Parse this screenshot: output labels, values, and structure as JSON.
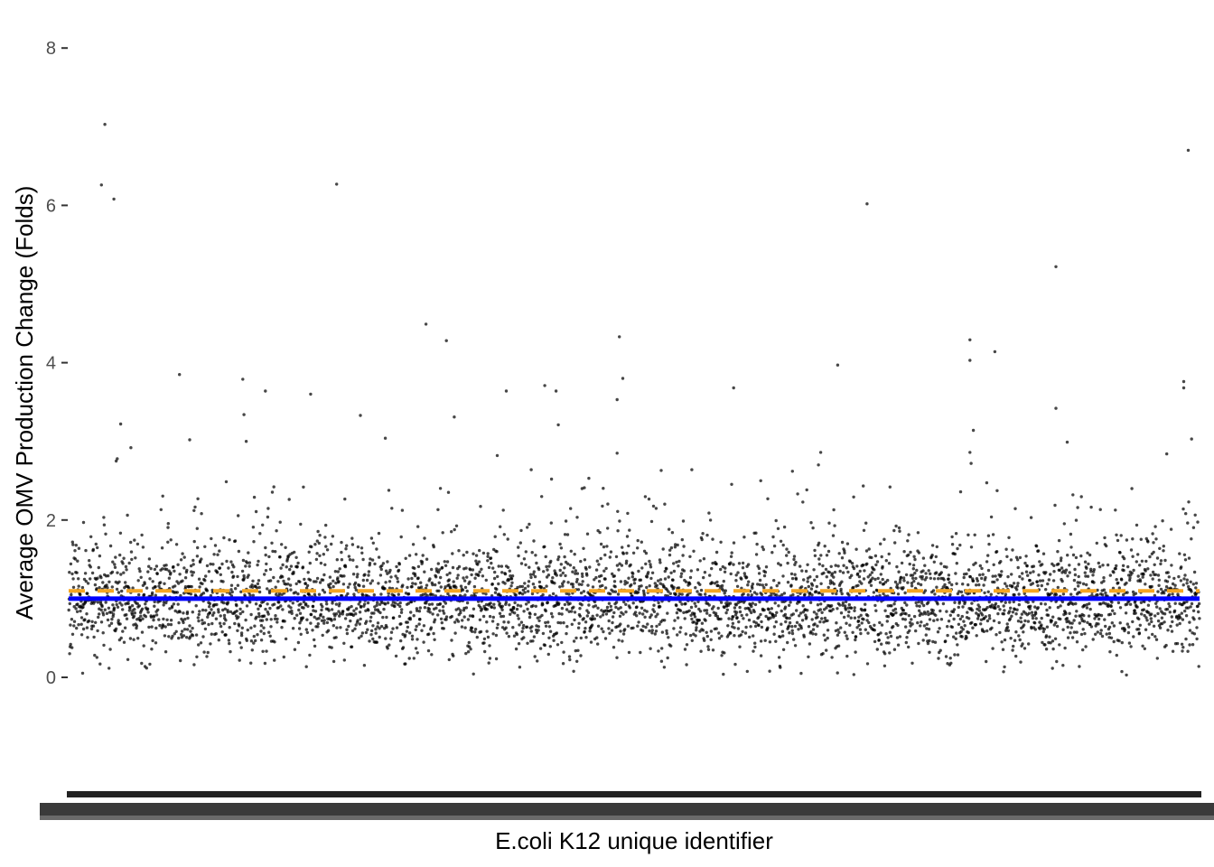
{
  "chart_data": {
    "type": "scatter",
    "title": "",
    "xlabel": "E.coli K12 unique identifier",
    "ylabel": "Average OMV Production Change (Folds)",
    "ylim": [
      -1.5,
      8.1
    ],
    "y_ticks": [
      "0",
      "2",
      "4",
      "6",
      "8"
    ],
    "grid": false,
    "legend": "none",
    "n_points": 4300,
    "x_tick_labels_note": "overlapping unique identifiers (illegible, rendered as solid band)",
    "reference_lines": [
      {
        "y": 1.0,
        "style": "solid",
        "color": "#0000ff"
      },
      {
        "y": 1.1,
        "style": "dashed",
        "color": "#f5a623"
      }
    ],
    "bulk_distribution": {
      "center": 0.97,
      "spread": 0.33
    },
    "outliers": [
      {
        "x": 0.032,
        "y": 7.03
      },
      {
        "x": 0.029,
        "y": 6.26
      },
      {
        "x": 0.04,
        "y": 6.08
      },
      {
        "x": 0.237,
        "y": 6.27
      },
      {
        "x": 0.706,
        "y": 6.02
      },
      {
        "x": 0.99,
        "y": 6.7
      },
      {
        "x": 0.873,
        "y": 5.22
      },
      {
        "x": 0.316,
        "y": 4.49
      },
      {
        "x": 0.334,
        "y": 4.28
      },
      {
        "x": 0.487,
        "y": 4.33
      },
      {
        "x": 0.797,
        "y": 4.29
      },
      {
        "x": 0.819,
        "y": 4.14
      },
      {
        "x": 0.68,
        "y": 3.97
      },
      {
        "x": 0.797,
        "y": 4.03
      },
      {
        "x": 0.098,
        "y": 3.85
      },
      {
        "x": 0.154,
        "y": 3.79
      },
      {
        "x": 0.49,
        "y": 3.8
      },
      {
        "x": 0.588,
        "y": 3.68
      },
      {
        "x": 0.986,
        "y": 3.76
      },
      {
        "x": 0.986,
        "y": 3.68
      },
      {
        "x": 0.174,
        "y": 3.64
      },
      {
        "x": 0.214,
        "y": 3.6
      },
      {
        "x": 0.387,
        "y": 3.64
      },
      {
        "x": 0.421,
        "y": 3.71
      },
      {
        "x": 0.431,
        "y": 3.64
      },
      {
        "x": 0.485,
        "y": 3.53
      },
      {
        "x": 0.155,
        "y": 3.34
      },
      {
        "x": 0.258,
        "y": 3.33
      },
      {
        "x": 0.341,
        "y": 3.31
      },
      {
        "x": 0.046,
        "y": 3.22
      },
      {
        "x": 0.433,
        "y": 3.21
      },
      {
        "x": 0.873,
        "y": 3.42
      },
      {
        "x": 0.8,
        "y": 3.14
      },
      {
        "x": 0.28,
        "y": 3.04
      },
      {
        "x": 0.883,
        "y": 2.99
      },
      {
        "x": 0.107,
        "y": 3.02
      },
      {
        "x": 0.157,
        "y": 3.0
      },
      {
        "x": 0.993,
        "y": 3.03
      },
      {
        "x": 0.055,
        "y": 2.92
      },
      {
        "x": 0.043,
        "y": 2.78
      },
      {
        "x": 0.042,
        "y": 2.75
      },
      {
        "x": 0.797,
        "y": 2.86
      },
      {
        "x": 0.798,
        "y": 2.72
      },
      {
        "x": 0.971,
        "y": 2.84
      },
      {
        "x": 0.665,
        "y": 2.86
      },
      {
        "x": 0.379,
        "y": 2.82
      },
      {
        "x": 0.485,
        "y": 2.85
      },
      {
        "x": 0.409,
        "y": 2.64
      },
      {
        "x": 0.524,
        "y": 2.63
      },
      {
        "x": 0.551,
        "y": 2.64
      },
      {
        "x": 0.64,
        "y": 2.62
      },
      {
        "x": 0.663,
        "y": 2.7
      },
      {
        "x": 0.427,
        "y": 2.52
      },
      {
        "x": 0.46,
        "y": 2.53
      },
      {
        "x": 0.612,
        "y": 2.5
      },
      {
        "x": 0.454,
        "y": 2.4
      },
      {
        "x": 0.456,
        "y": 2.41
      }
    ]
  }
}
